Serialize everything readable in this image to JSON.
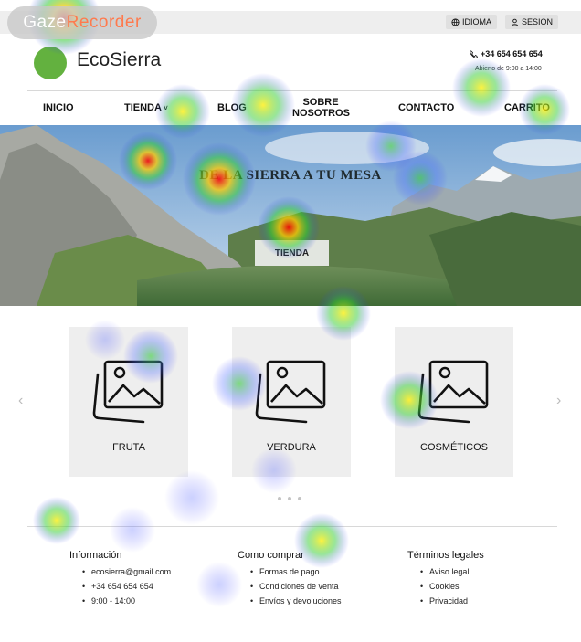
{
  "watermark": {
    "part1": "Gaze",
    "part2": "Recorder"
  },
  "topbar": {
    "language_label": "IDIOMA",
    "session_label": "SESION",
    "icons": [
      "globe-icon",
      "user-icon"
    ]
  },
  "header": {
    "brand": "EcoSierra",
    "phone": "+34 654 654 654",
    "hours": "Abierto de 9:00 a 14:00",
    "logo_color": "#63b13f"
  },
  "nav": {
    "items": [
      {
        "label": "INICIO"
      },
      {
        "label": "TIENDA",
        "has_dropdown": true
      },
      {
        "label": "BLOG"
      },
      {
        "label": "SOBRE NOSOTROS",
        "line1": "SOBRE",
        "line2": "NOSOTROS"
      },
      {
        "label": "CONTACTO"
      },
      {
        "label": "CARRITO"
      }
    ]
  },
  "hero": {
    "title": "DE LA SIERRA A TU MESA",
    "button_label": "TIENDA"
  },
  "categories": {
    "items": [
      {
        "label": "FRUTA"
      },
      {
        "label": "VERDURA"
      },
      {
        "label": "COSMÉTICOS"
      }
    ],
    "prev_arrow": "‹",
    "next_arrow": "›",
    "pager_dots": 3
  },
  "footer": {
    "columns": [
      {
        "title": "Información",
        "items": [
          "ecosierra@gmail.com",
          "+34 654 654 654",
          "9:00 - 14:00"
        ]
      },
      {
        "title": "Como comprar",
        "items": [
          "Formas de pago",
          "Condiciones de venta",
          "Envíos y devoluciones"
        ]
      },
      {
        "title": "Términos legales",
        "items": [
          "Aviso legal",
          "Cookies",
          "Privacidad"
        ]
      }
    ]
  },
  "colors": {
    "accent_green": "#63b13f",
    "card_bg": "#eeeeee",
    "topbar_bg": "#eeeeee"
  }
}
